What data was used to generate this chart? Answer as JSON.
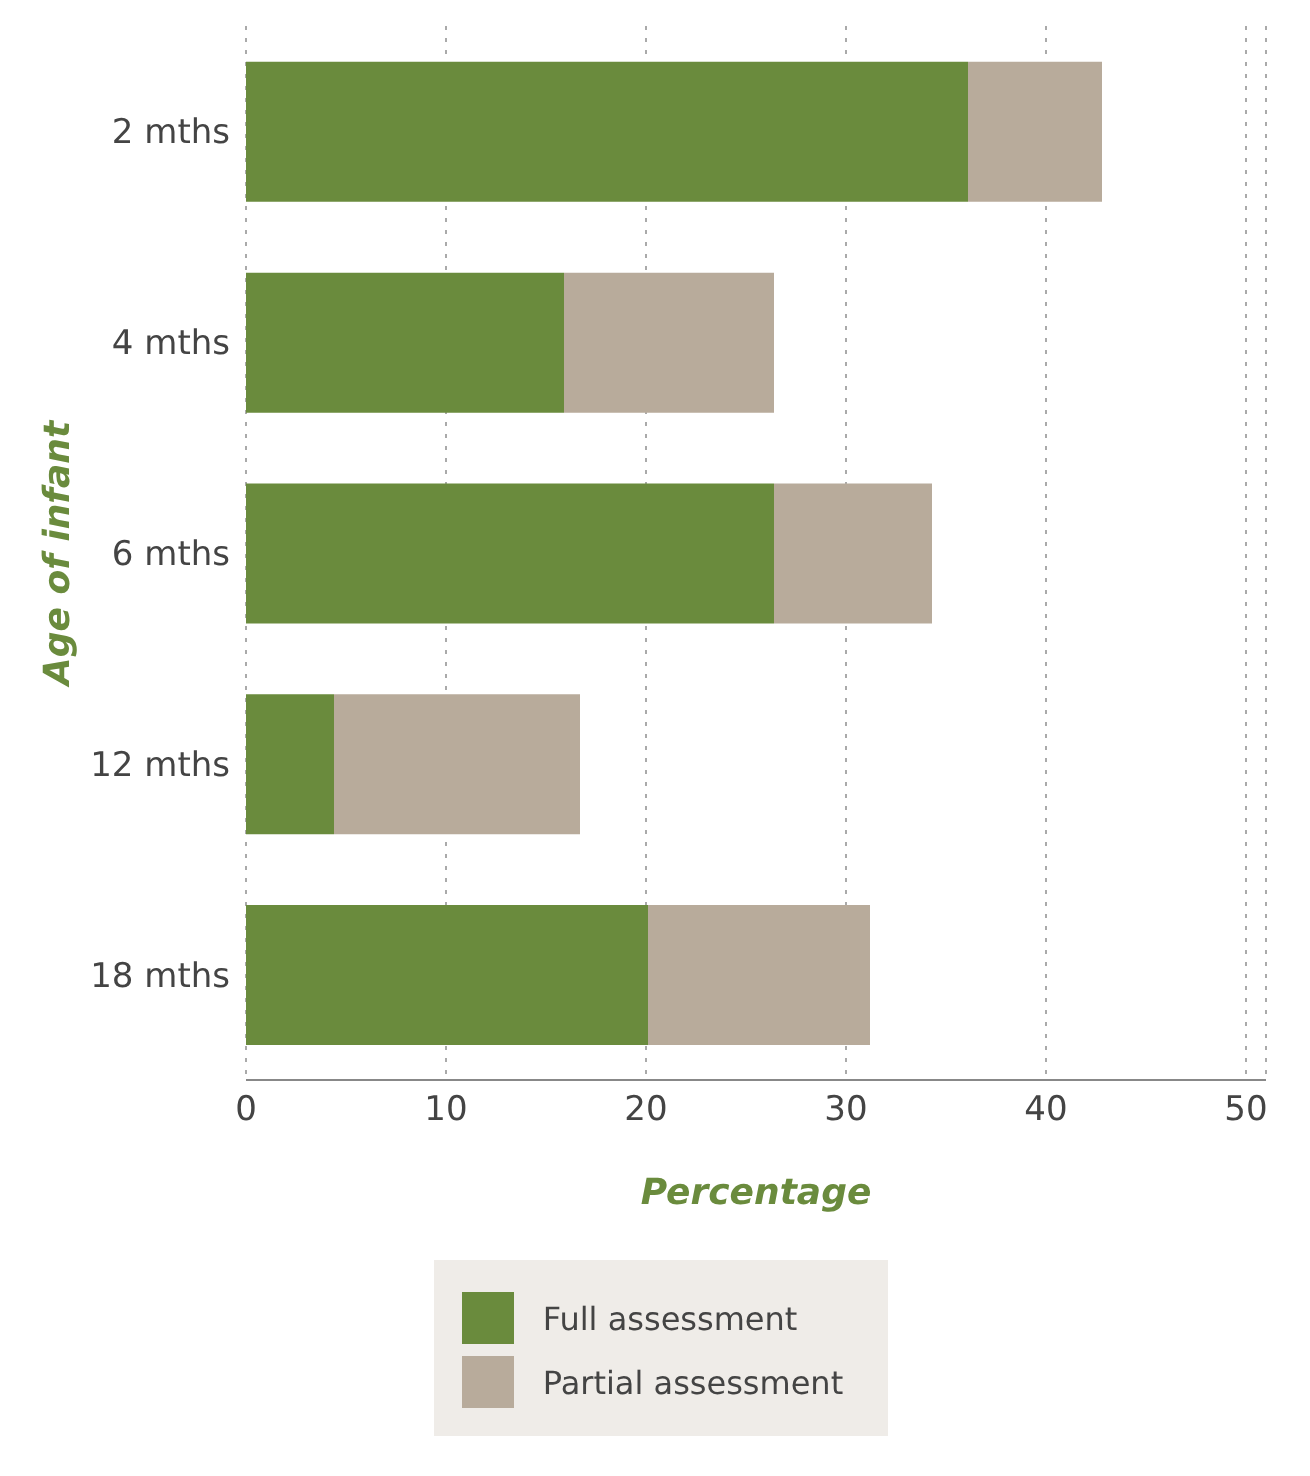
{
  "chart_data": {
    "type": "bar",
    "orientation": "horizontal",
    "stacked": true,
    "xlabel": "Percentage",
    "ylabel": "Age of infant",
    "categories": [
      "2 mths",
      "4 mths",
      "6 mths",
      "12 mths",
      "18 mths"
    ],
    "series": [
      {
        "name": "Full assessment",
        "color": "#6a8b3d",
        "values": [
          36.1,
          15.9,
          26.4,
          4.4,
          20.1
        ]
      },
      {
        "name": "Partial assessment",
        "color": "#b8ab9b",
        "values": [
          6.7,
          10.5,
          7.9,
          12.3,
          11.1
        ]
      }
    ],
    "xlim": [
      0,
      51
    ],
    "xticks": [
      0,
      10,
      20,
      30,
      40,
      50
    ],
    "grid": "x",
    "legend": "bottom"
  }
}
